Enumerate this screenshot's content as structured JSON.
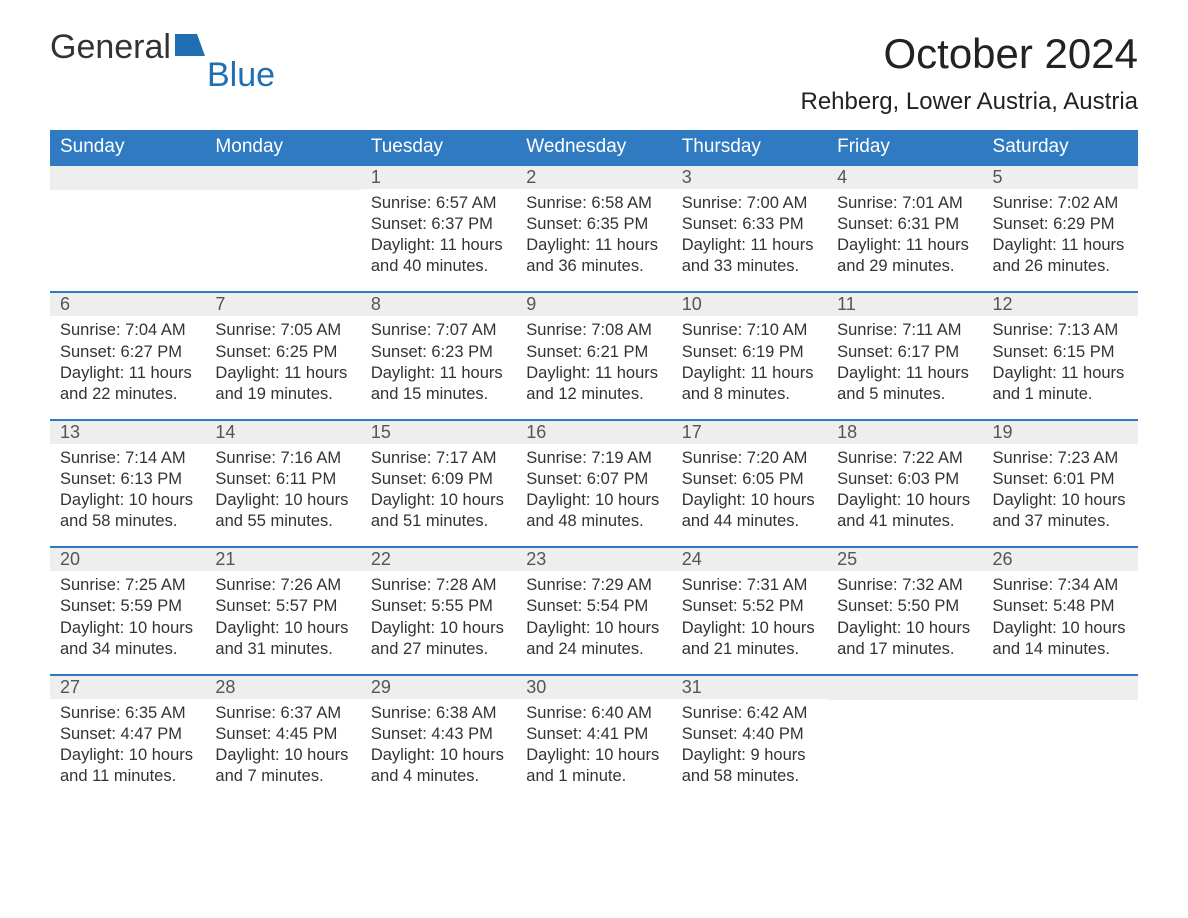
{
  "brand": {
    "part1": "General",
    "part2": "Blue"
  },
  "title": "October 2024",
  "location": "Rehberg, Lower Austria, Austria",
  "colors": {
    "header_bg": "#2f7ac0",
    "header_text": "#ffffff",
    "daynum_bg": "#eeeeee",
    "daynum_border": "#2f7ac0",
    "body_text": "#333333",
    "brand_accent": "#1f6fb2",
    "page_bg": "#ffffff"
  },
  "day_headers": [
    "Sunday",
    "Monday",
    "Tuesday",
    "Wednesday",
    "Thursday",
    "Friday",
    "Saturday"
  ],
  "weeks": [
    [
      {
        "blank": true
      },
      {
        "blank": true
      },
      {
        "num": "1",
        "sunrise": "Sunrise: 6:57 AM",
        "sunset": "Sunset: 6:37 PM",
        "daylight": "Daylight: 11 hours and 40 minutes."
      },
      {
        "num": "2",
        "sunrise": "Sunrise: 6:58 AM",
        "sunset": "Sunset: 6:35 PM",
        "daylight": "Daylight: 11 hours and 36 minutes."
      },
      {
        "num": "3",
        "sunrise": "Sunrise: 7:00 AM",
        "sunset": "Sunset: 6:33 PM",
        "daylight": "Daylight: 11 hours and 33 minutes."
      },
      {
        "num": "4",
        "sunrise": "Sunrise: 7:01 AM",
        "sunset": "Sunset: 6:31 PM",
        "daylight": "Daylight: 11 hours and 29 minutes."
      },
      {
        "num": "5",
        "sunrise": "Sunrise: 7:02 AM",
        "sunset": "Sunset: 6:29 PM",
        "daylight": "Daylight: 11 hours and 26 minutes."
      }
    ],
    [
      {
        "num": "6",
        "sunrise": "Sunrise: 7:04 AM",
        "sunset": "Sunset: 6:27 PM",
        "daylight": "Daylight: 11 hours and 22 minutes."
      },
      {
        "num": "7",
        "sunrise": "Sunrise: 7:05 AM",
        "sunset": "Sunset: 6:25 PM",
        "daylight": "Daylight: 11 hours and 19 minutes."
      },
      {
        "num": "8",
        "sunrise": "Sunrise: 7:07 AM",
        "sunset": "Sunset: 6:23 PM",
        "daylight": "Daylight: 11 hours and 15 minutes."
      },
      {
        "num": "9",
        "sunrise": "Sunrise: 7:08 AM",
        "sunset": "Sunset: 6:21 PM",
        "daylight": "Daylight: 11 hours and 12 minutes."
      },
      {
        "num": "10",
        "sunrise": "Sunrise: 7:10 AM",
        "sunset": "Sunset: 6:19 PM",
        "daylight": "Daylight: 11 hours and 8 minutes."
      },
      {
        "num": "11",
        "sunrise": "Sunrise: 7:11 AM",
        "sunset": "Sunset: 6:17 PM",
        "daylight": "Daylight: 11 hours and 5 minutes."
      },
      {
        "num": "12",
        "sunrise": "Sunrise: 7:13 AM",
        "sunset": "Sunset: 6:15 PM",
        "daylight": "Daylight: 11 hours and 1 minute."
      }
    ],
    [
      {
        "num": "13",
        "sunrise": "Sunrise: 7:14 AM",
        "sunset": "Sunset: 6:13 PM",
        "daylight": "Daylight: 10 hours and 58 minutes."
      },
      {
        "num": "14",
        "sunrise": "Sunrise: 7:16 AM",
        "sunset": "Sunset: 6:11 PM",
        "daylight": "Daylight: 10 hours and 55 minutes."
      },
      {
        "num": "15",
        "sunrise": "Sunrise: 7:17 AM",
        "sunset": "Sunset: 6:09 PM",
        "daylight": "Daylight: 10 hours and 51 minutes."
      },
      {
        "num": "16",
        "sunrise": "Sunrise: 7:19 AM",
        "sunset": "Sunset: 6:07 PM",
        "daylight": "Daylight: 10 hours and 48 minutes."
      },
      {
        "num": "17",
        "sunrise": "Sunrise: 7:20 AM",
        "sunset": "Sunset: 6:05 PM",
        "daylight": "Daylight: 10 hours and 44 minutes."
      },
      {
        "num": "18",
        "sunrise": "Sunrise: 7:22 AM",
        "sunset": "Sunset: 6:03 PM",
        "daylight": "Daylight: 10 hours and 41 minutes."
      },
      {
        "num": "19",
        "sunrise": "Sunrise: 7:23 AM",
        "sunset": "Sunset: 6:01 PM",
        "daylight": "Daylight: 10 hours and 37 minutes."
      }
    ],
    [
      {
        "num": "20",
        "sunrise": "Sunrise: 7:25 AM",
        "sunset": "Sunset: 5:59 PM",
        "daylight": "Daylight: 10 hours and 34 minutes."
      },
      {
        "num": "21",
        "sunrise": "Sunrise: 7:26 AM",
        "sunset": "Sunset: 5:57 PM",
        "daylight": "Daylight: 10 hours and 31 minutes."
      },
      {
        "num": "22",
        "sunrise": "Sunrise: 7:28 AM",
        "sunset": "Sunset: 5:55 PM",
        "daylight": "Daylight: 10 hours and 27 minutes."
      },
      {
        "num": "23",
        "sunrise": "Sunrise: 7:29 AM",
        "sunset": "Sunset: 5:54 PM",
        "daylight": "Daylight: 10 hours and 24 minutes."
      },
      {
        "num": "24",
        "sunrise": "Sunrise: 7:31 AM",
        "sunset": "Sunset: 5:52 PM",
        "daylight": "Daylight: 10 hours and 21 minutes."
      },
      {
        "num": "25",
        "sunrise": "Sunrise: 7:32 AM",
        "sunset": "Sunset: 5:50 PM",
        "daylight": "Daylight: 10 hours and 17 minutes."
      },
      {
        "num": "26",
        "sunrise": "Sunrise: 7:34 AM",
        "sunset": "Sunset: 5:48 PM",
        "daylight": "Daylight: 10 hours and 14 minutes."
      }
    ],
    [
      {
        "num": "27",
        "sunrise": "Sunrise: 6:35 AM",
        "sunset": "Sunset: 4:47 PM",
        "daylight": "Daylight: 10 hours and 11 minutes."
      },
      {
        "num": "28",
        "sunrise": "Sunrise: 6:37 AM",
        "sunset": "Sunset: 4:45 PM",
        "daylight": "Daylight: 10 hours and 7 minutes."
      },
      {
        "num": "29",
        "sunrise": "Sunrise: 6:38 AM",
        "sunset": "Sunset: 4:43 PM",
        "daylight": "Daylight: 10 hours and 4 minutes."
      },
      {
        "num": "30",
        "sunrise": "Sunrise: 6:40 AM",
        "sunset": "Sunset: 4:41 PM",
        "daylight": "Daylight: 10 hours and 1 minute."
      },
      {
        "num": "31",
        "sunrise": "Sunrise: 6:42 AM",
        "sunset": "Sunset: 4:40 PM",
        "daylight": "Daylight: 9 hours and 58 minutes."
      },
      {
        "blank": true
      },
      {
        "blank": true
      }
    ]
  ]
}
